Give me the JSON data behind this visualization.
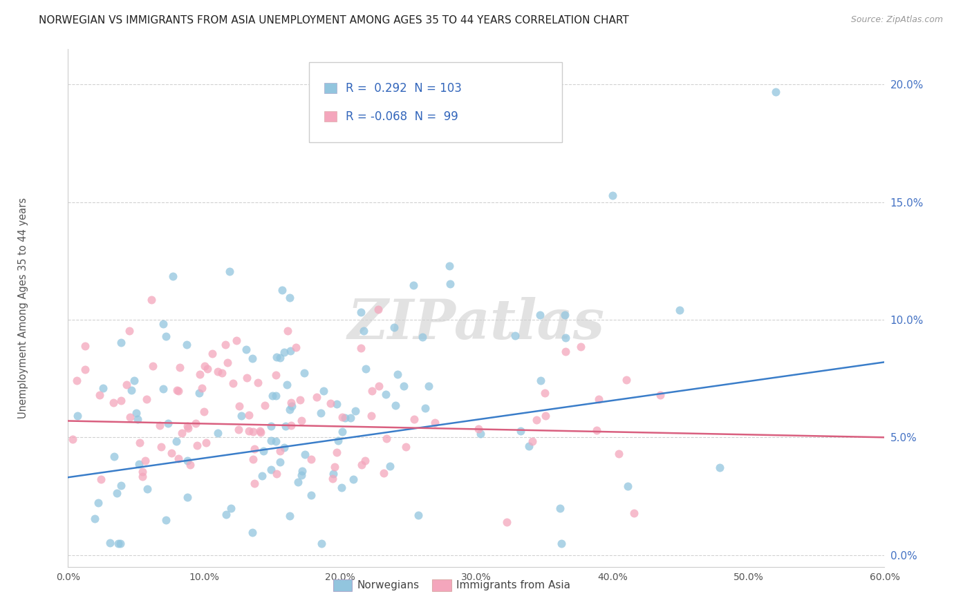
{
  "title": "NORWEGIAN VS IMMIGRANTS FROM ASIA UNEMPLOYMENT AMONG AGES 35 TO 44 YEARS CORRELATION CHART",
  "source": "Source: ZipAtlas.com",
  "ylabel": "Unemployment Among Ages 35 to 44 years",
  "xlim": [
    0.0,
    0.6
  ],
  "ylim": [
    -0.005,
    0.215
  ],
  "xticks": [
    0.0,
    0.1,
    0.2,
    0.3,
    0.4,
    0.5,
    0.6
  ],
  "xticklabels": [
    "0.0%",
    "10.0%",
    "20.0%",
    "30.0%",
    "40.0%",
    "50.0%",
    "60.0%"
  ],
  "yticks": [
    0.0,
    0.05,
    0.1,
    0.15,
    0.2
  ],
  "yticklabels": [
    "0.0%",
    "5.0%",
    "10.0%",
    "15.0%",
    "20.0%"
  ],
  "blue_R": 0.292,
  "blue_N": 103,
  "pink_R": -0.068,
  "pink_N": 99,
  "blue_color": "#92c5de",
  "pink_color": "#f4a6bc",
  "blue_line_color": "#3a7dc9",
  "pink_line_color": "#d95f7f",
  "tick_color": "#4472c4",
  "legend_label_blue": "Norwegians",
  "legend_label_pink": "Immigrants from Asia",
  "watermark": "ZIPatlas",
  "blue_line_x": [
    0.0,
    0.6
  ],
  "blue_line_y": [
    0.033,
    0.082
  ],
  "pink_line_x": [
    0.0,
    0.6
  ],
  "pink_line_y": [
    0.057,
    0.05
  ]
}
